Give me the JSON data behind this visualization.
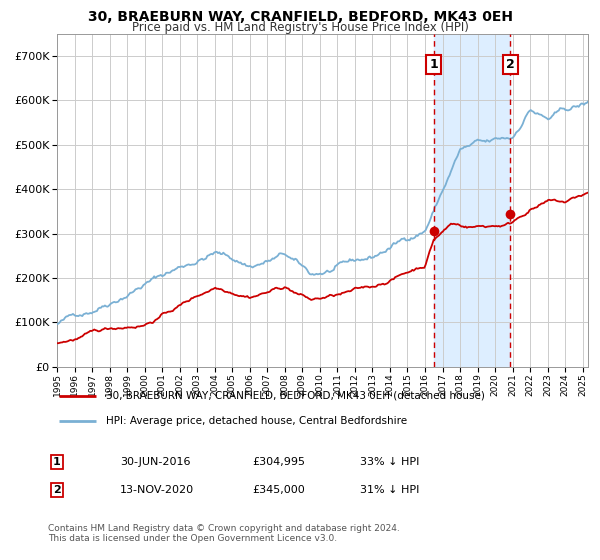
{
  "title_line1": "30, BRAEBURN WAY, CRANFIELD, BEDFORD, MK43 0EH",
  "title_line2": "Price paid vs. HM Land Registry's House Price Index (HPI)",
  "legend_label_red": "30, BRAEBURN WAY, CRANFIELD, BEDFORD, MK43 0EH (detached house)",
  "legend_label_blue": "HPI: Average price, detached house, Central Bedfordshire",
  "annotation1_label": "1",
  "annotation1_date": "30-JUN-2016",
  "annotation1_price": "£304,995",
  "annotation1_pct": "33% ↓ HPI",
  "annotation2_label": "2",
  "annotation2_date": "13-NOV-2020",
  "annotation2_price": "£345,000",
  "annotation2_pct": "31% ↓ HPI",
  "footer": "Contains HM Land Registry data © Crown copyright and database right 2024.\nThis data is licensed under the Open Government Licence v3.0.",
  "red_color": "#cc0000",
  "blue_color": "#7ab0d4",
  "background_color": "#ffffff",
  "plot_bg_color": "#ffffff",
  "shade_color": "#ddeeff",
  "grid_color": "#cccccc",
  "ylim": [
    0,
    750000
  ],
  "yticks": [
    0,
    100000,
    200000,
    300000,
    400000,
    500000,
    600000,
    700000
  ],
  "ytick_labels": [
    "£0",
    "£100K",
    "£200K",
    "£300K",
    "£400K",
    "£500K",
    "£600K",
    "£700K"
  ],
  "sale1_year": 2016.5,
  "sale1_price": 304995,
  "sale2_year": 2020.87,
  "sale2_price": 345000,
  "xmin": 1995,
  "xmax": 2025.3
}
